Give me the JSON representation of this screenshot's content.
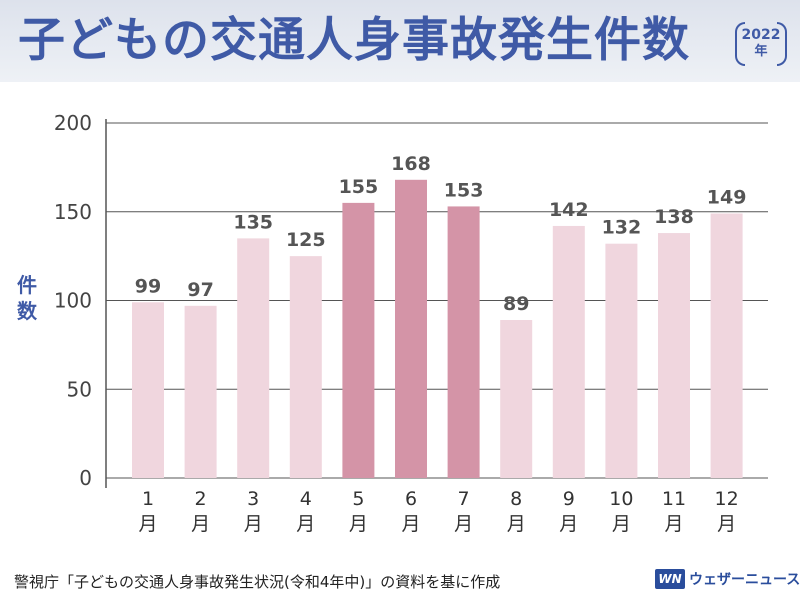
{
  "header": {
    "title": "子どもの交通人身事故発生件数",
    "year": "2022",
    "year_unit": "年"
  },
  "y_axis_label": "件数",
  "source": "警視庁「子どもの交通人身事故発生状況(令和4年中)」の資料を基に作成",
  "logo": {
    "mark": "WN",
    "text": "ウェザーニュース"
  },
  "colors": {
    "highlight": "#d494a7",
    "normal": "#f0d6de",
    "accent": "#3f5aa6",
    "grid": "#555555"
  },
  "chart_data": {
    "type": "bar",
    "title": "子どもの交通人身事故発生件数",
    "subtitle": "2022年",
    "ylabel": "件数",
    "xlabel": "",
    "categories": [
      "1月",
      "2月",
      "3月",
      "4月",
      "5月",
      "6月",
      "7月",
      "8月",
      "9月",
      "10月",
      "11月",
      "12月"
    ],
    "values": [
      99,
      97,
      135,
      125,
      155,
      168,
      153,
      89,
      142,
      132,
      138,
      149
    ],
    "highlighted": [
      "5月",
      "6月",
      "7月"
    ],
    "ylim": [
      0,
      200
    ],
    "yticks": [
      0,
      50,
      100,
      150,
      200
    ],
    "grid": true,
    "data_labels": true
  }
}
